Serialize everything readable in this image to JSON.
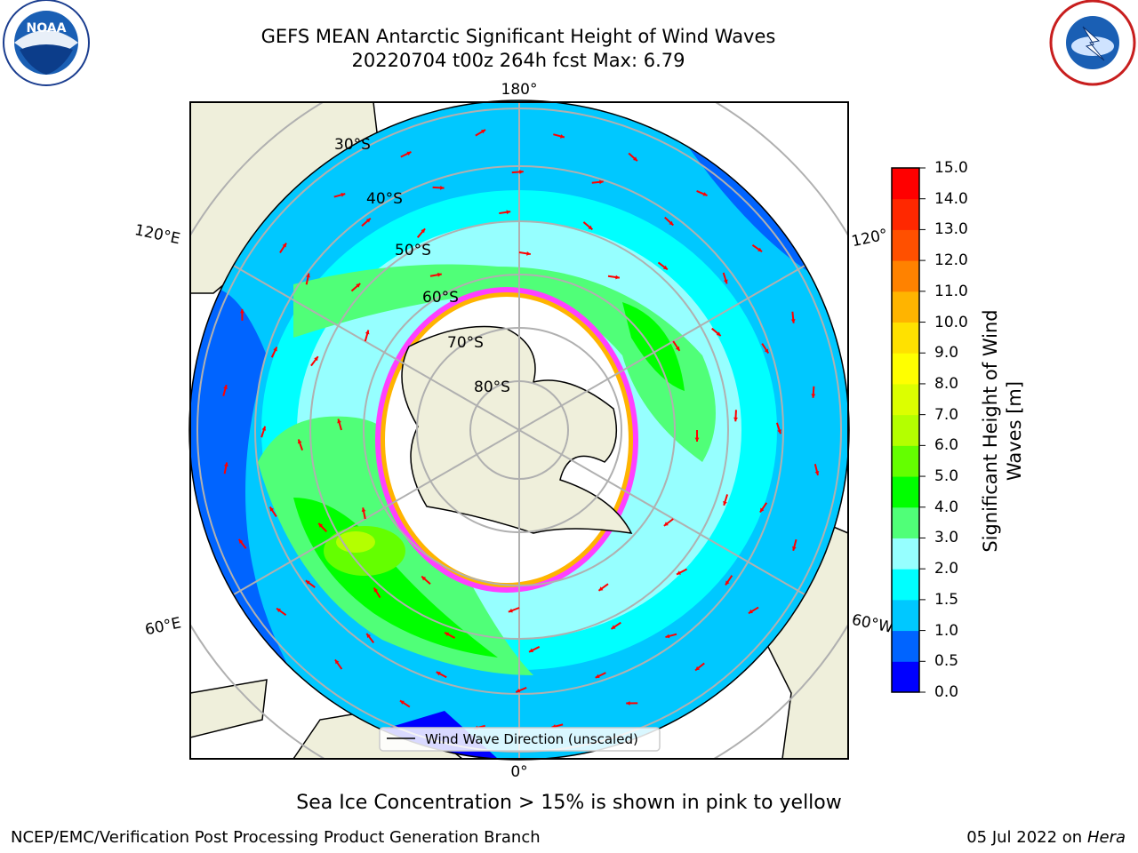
{
  "header": {
    "title_line1": "GEFS MEAN Antarctic Significant Height of Wind Waves",
    "title_line2": "20220704 t00z 264h fcst   Max: 6.79"
  },
  "logos": {
    "left": "NOAA",
    "left_ring_text": "NATIONAL OCEANIC AND ATMOSPHERIC ADMINISTRATION · U.S. DEPARTMENT OF COMMERCE",
    "right_ring_text": "NATIONAL WEATHER SERVICE"
  },
  "map": {
    "lon_labels": {
      "top": "180°",
      "bottom": "0°",
      "left_upper": "120°E",
      "left_lower": "60°E",
      "right_upper": "120°",
      "right_lower": "60°W"
    },
    "lat_labels": [
      "30°S",
      "40°S",
      "50°S",
      "60°S",
      "70°S",
      "80°S"
    ],
    "legend_label": "Wind Wave Direction (unscaled)",
    "colors": {
      "land": "#efefdb",
      "ice": "#ffffff",
      "arrow": "#ff0000",
      "grid": "#b0b0b0"
    }
  },
  "colorbar": {
    "label": "Significant Height of Wind Waves [m]",
    "ticks": [
      "0.0",
      "0.5",
      "1.0",
      "1.5",
      "2.0",
      "3.0",
      "4.0",
      "5.0",
      "6.0",
      "7.0",
      "8.0",
      "9.0",
      "10.0",
      "11.0",
      "12.0",
      "13.0",
      "14.0",
      "15.0"
    ],
    "colors": [
      "#0000ff",
      "#0064ff",
      "#00c8ff",
      "#00ffff",
      "#96ffff",
      "#50ff78",
      "#00ff00",
      "#64ff00",
      "#b4ff00",
      "#dcff00",
      "#ffff00",
      "#ffe100",
      "#ffb400",
      "#ff8200",
      "#ff5000",
      "#ff2800",
      "#ff0000"
    ]
  },
  "notes": {
    "sea_ice": "Sea Ice Concentration > 15% is shown in pink to yellow"
  },
  "footer": {
    "left": "NCEP/EMC/Verification Post Processing Product Generation Branch",
    "right_date": "05 Jul 2022 on ",
    "right_host": "Hera"
  }
}
